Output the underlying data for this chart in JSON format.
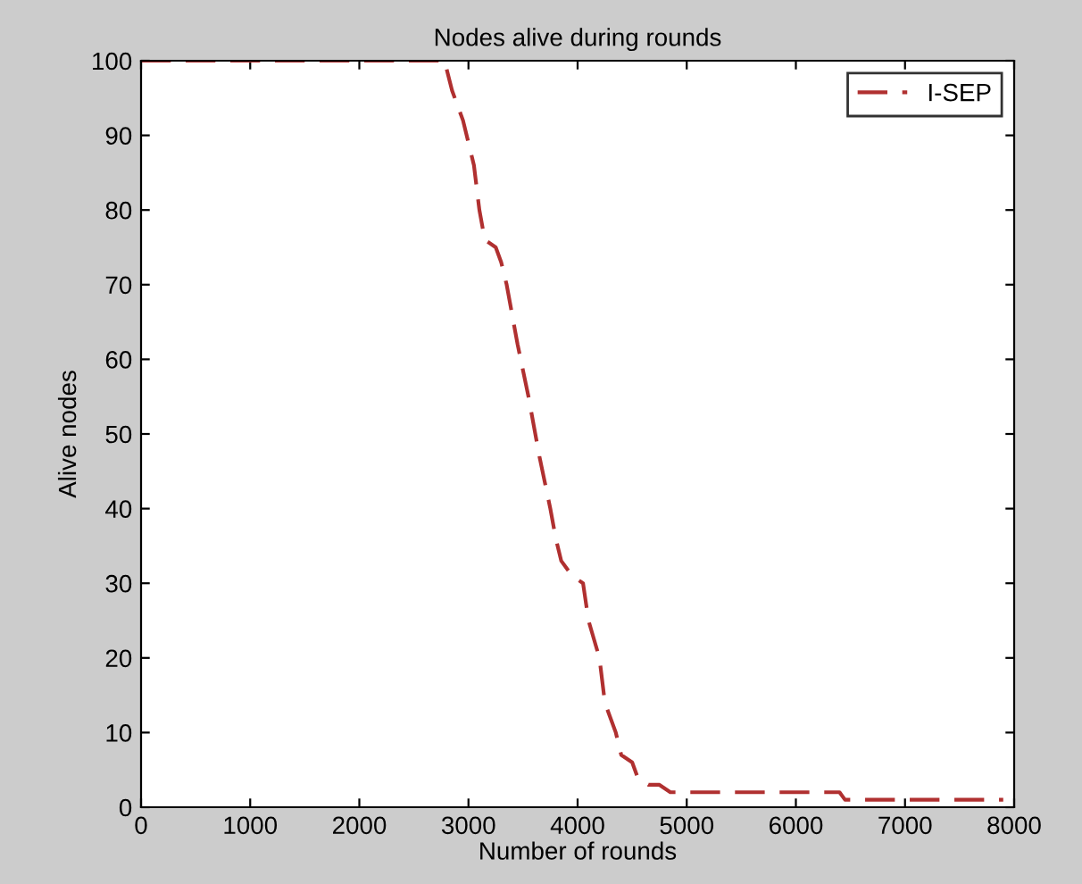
{
  "chart_data": {
    "type": "line",
    "title": "Nodes alive during rounds",
    "xlabel": "Number of rounds",
    "ylabel": "Alive nodes",
    "series": [
      {
        "name": "I-SEP",
        "color": "#b03030",
        "x": [
          0,
          2780,
          2850,
          2950,
          3050,
          3100,
          3150,
          3250,
          3300,
          3350,
          3450,
          3550,
          3650,
          3750,
          3800,
          3850,
          3950,
          4050,
          4100,
          4200,
          4250,
          4300,
          4350,
          4400,
          4500,
          4550,
          4650,
          4750,
          4850,
          4950,
          5500,
          6400,
          6450,
          7000,
          7900
        ],
        "values": [
          100,
          100,
          96,
          92,
          86,
          80,
          76,
          75,
          73,
          70,
          62,
          55,
          47,
          40,
          36,
          33,
          31,
          30,
          25,
          20,
          14,
          12,
          10,
          7,
          6,
          4,
          3,
          3,
          2,
          2,
          2,
          2,
          1,
          1,
          1
        ]
      }
    ],
    "xlim": [
      0,
      8000
    ],
    "ylim": [
      0,
      100
    ],
    "xticks": [
      0,
      1000,
      2000,
      3000,
      4000,
      5000,
      6000,
      7000,
      8000
    ],
    "yticks": [
      0,
      10,
      20,
      30,
      40,
      50,
      60,
      70,
      80,
      90,
      100
    ],
    "legend": "top right",
    "line_style": "dashed",
    "marker": "none",
    "grid": false
  }
}
